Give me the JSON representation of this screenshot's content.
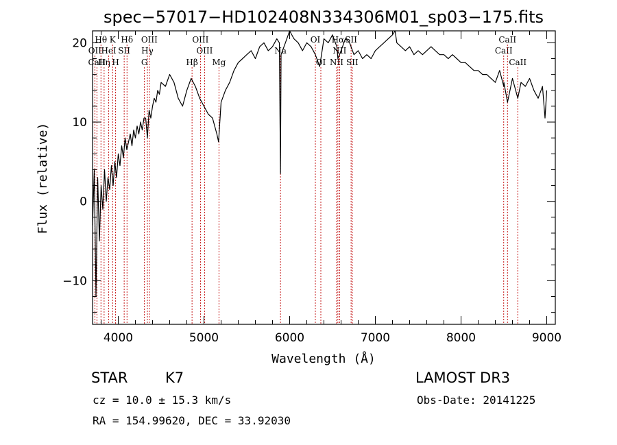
{
  "chart_data": {
    "type": "line",
    "title": "spec−57017−HD102408N334306M01_sp03−175.fits",
    "xlabel": "Wavelength (Å)",
    "ylabel": "Flux (relative)",
    "xlim": [
      3700,
      9100
    ],
    "ylim": [
      -15.5,
      21.5
    ],
    "xticks": [
      4000,
      5000,
      6000,
      7000,
      8000,
      9000
    ],
    "xtick_labels": [
      "4000",
      "5000",
      "6000",
      "7000",
      "8000",
      "9000"
    ],
    "yticks": [
      -10,
      0,
      10,
      20
    ],
    "ytick_labels": [
      "−10",
      "0",
      "10",
      "20"
    ],
    "series": [
      {
        "name": "flux",
        "x": [
          3700,
          3720,
          3740,
          3760,
          3780,
          3800,
          3820,
          3840,
          3860,
          3880,
          3900,
          3920,
          3940,
          3960,
          3980,
          4000,
          4020,
          4040,
          4060,
          4080,
          4100,
          4120,
          4140,
          4160,
          4180,
          4200,
          4220,
          4240,
          4260,
          4280,
          4300,
          4320,
          4340,
          4360,
          4380,
          4400,
          4420,
          4440,
          4460,
          4480,
          4500,
          4550,
          4600,
          4650,
          4700,
          4750,
          4800,
          4850,
          4900,
          4950,
          5000,
          5050,
          5100,
          5150,
          5170,
          5200,
          5250,
          5300,
          5350,
          5400,
          5450,
          5500,
          5550,
          5600,
          5650,
          5700,
          5750,
          5800,
          5850,
          5880,
          5893,
          5900,
          5950,
          6000,
          6050,
          6100,
          6150,
          6200,
          6250,
          6300,
          6350,
          6400,
          6450,
          6500,
          6550,
          6563,
          6600,
          6650,
          6700,
          6750,
          6800,
          6850,
          6900,
          6950,
          7000,
          7050,
          7100,
          7150,
          7200,
          7230,
          7250,
          7300,
          7350,
          7400,
          7450,
          7500,
          7550,
          7600,
          7650,
          7700,
          7750,
          7800,
          7850,
          7900,
          7950,
          8000,
          8050,
          8100,
          8150,
          8200,
          8250,
          8300,
          8350,
          8400,
          8450,
          8498,
          8500,
          8542,
          8600,
          8662,
          8700,
          8750,
          8800,
          8850,
          8900,
          8950,
          8980,
          9000
        ],
        "y": [
          -3.0,
          4.0,
          -12.0,
          3.0,
          -5.0,
          2.0,
          -1.0,
          4.0,
          0.0,
          3.0,
          1.5,
          4.5,
          2.0,
          5.0,
          3.0,
          6.0,
          4.5,
          7.0,
          5.5,
          8.0,
          6.5,
          7.5,
          8.5,
          7.0,
          9.0,
          8.0,
          9.5,
          8.5,
          10.0,
          9.0,
          10.5,
          10.5,
          8.0,
          11.5,
          10.5,
          12.0,
          13.0,
          12.5,
          14.0,
          13.5,
          15.0,
          14.5,
          16.0,
          15.0,
          13.0,
          12.0,
          14.0,
          15.5,
          14.5,
          13.0,
          12.0,
          11.0,
          10.5,
          8.5,
          7.5,
          12.5,
          14.0,
          15.0,
          16.5,
          17.5,
          18.0,
          18.5,
          19.0,
          18.0,
          19.5,
          20.0,
          19.0,
          19.5,
          20.5,
          20.0,
          3.5,
          18.5,
          20.0,
          21.5,
          20.5,
          20.0,
          19.0,
          20.0,
          19.5,
          18.5,
          17.0,
          20.5,
          20.0,
          21.0,
          19.5,
          18.0,
          19.0,
          20.5,
          20.0,
          18.5,
          19.0,
          18.0,
          18.5,
          18.0,
          19.0,
          19.5,
          20.0,
          20.5,
          21.0,
          21.5,
          20.0,
          19.5,
          19.0,
          19.5,
          18.5,
          19.0,
          18.5,
          19.0,
          19.5,
          19.0,
          18.5,
          18.5,
          18.0,
          18.5,
          18.0,
          17.5,
          17.5,
          17.0,
          16.5,
          16.5,
          16.0,
          16.0,
          15.5,
          15.0,
          16.5,
          14.5,
          15.0,
          12.5,
          15.5,
          13.0,
          15.0,
          14.5,
          15.5,
          14.0,
          13.0,
          14.5,
          10.5,
          14.0
        ]
      }
    ],
    "lines": [
      {
        "label": "Hθ",
        "wave": 3798,
        "row": 1
      },
      {
        "label": "OII",
        "wave": 3727,
        "row": 2
      },
      {
        "label": "CaII",
        "wave": 3751,
        "row": 3
      },
      {
        "label": "Hη",
        "wave": 3835,
        "row": 3
      },
      {
        "label": "HeI",
        "wave": 3889,
        "row": 2
      },
      {
        "label": "K",
        "wave": 3934,
        "row": 1
      },
      {
        "label": "H",
        "wave": 3969,
        "row": 3
      },
      {
        "label": "SII",
        "wave": 4069,
        "row": 2
      },
      {
        "label": "Hδ",
        "wave": 4102,
        "row": 1
      },
      {
        "label": "OIII",
        "wave": 4363,
        "row": 1
      },
      {
        "label": "Hγ",
        "wave": 4340,
        "row": 2
      },
      {
        "label": "G",
        "wave": 4305,
        "row": 3
      },
      {
        "label": "Hβ",
        "wave": 4861,
        "row": 3
      },
      {
        "label": "OIII",
        "wave": 4959,
        "row": 1
      },
      {
        "label": "OIII",
        "wave": 5007,
        "row": 2
      },
      {
        "label": "Mg",
        "wave": 5175,
        "row": 3
      },
      {
        "label": "Na",
        "wave": 5893,
        "row": 2
      },
      {
        "label": "OI",
        "wave": 6300,
        "row": 1
      },
      {
        "label": "OI",
        "wave": 6364,
        "row": 3
      },
      {
        "label": "NII",
        "wave": 6548,
        "row": 3
      },
      {
        "label": "Hα",
        "wave": 6563,
        "row": 1
      },
      {
        "label": "NII",
        "wave": 6583,
        "row": 2
      },
      {
        "label": "SII",
        "wave": 6717,
        "row": 1
      },
      {
        "label": "SII",
        "wave": 6731,
        "row": 3
      },
      {
        "label": "CaII",
        "wave": 8498,
        "row": 2
      },
      {
        "label": "CaII",
        "wave": 8542,
        "row": 1
      },
      {
        "label": "CaII",
        "wave": 8662,
        "row": 3
      }
    ]
  },
  "info": {
    "object_class": "STAR",
    "subclass": "K7",
    "survey": "LAMOST DR3",
    "cz": "cz = 10.0 ± 15.3 km/s",
    "obs_date": "Obs-Date: 20141225",
    "coords": "RA = 154.99620, DEC =  33.92030"
  }
}
